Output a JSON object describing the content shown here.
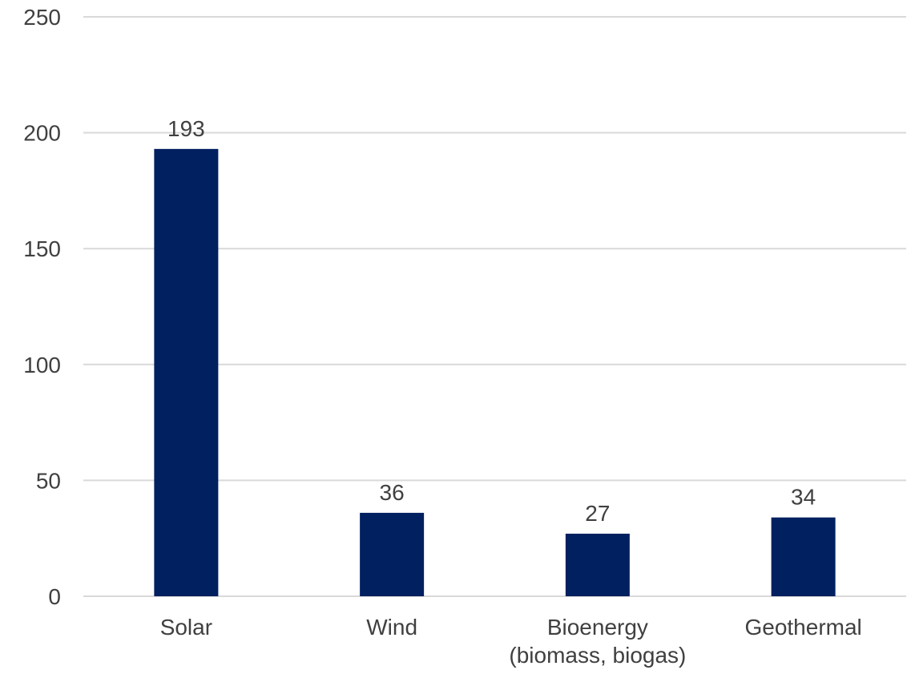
{
  "chart_data": {
    "type": "bar",
    "categories": [
      [
        "Solar"
      ],
      [
        "Wind"
      ],
      [
        "Bioenergy",
        "(biomass, biogas)"
      ],
      [
        "Geothermal"
      ]
    ],
    "values": [
      193,
      36,
      27,
      34
    ],
    "data_labels": [
      "193",
      "36",
      "27",
      "34"
    ],
    "yticks": [
      "0",
      "50",
      "100",
      "150",
      "200",
      "250"
    ],
    "ylim": [
      0,
      250
    ],
    "title": "",
    "xlabel": "",
    "ylabel": "",
    "grid": true,
    "legend": "none",
    "bar_color": "#002060"
  }
}
